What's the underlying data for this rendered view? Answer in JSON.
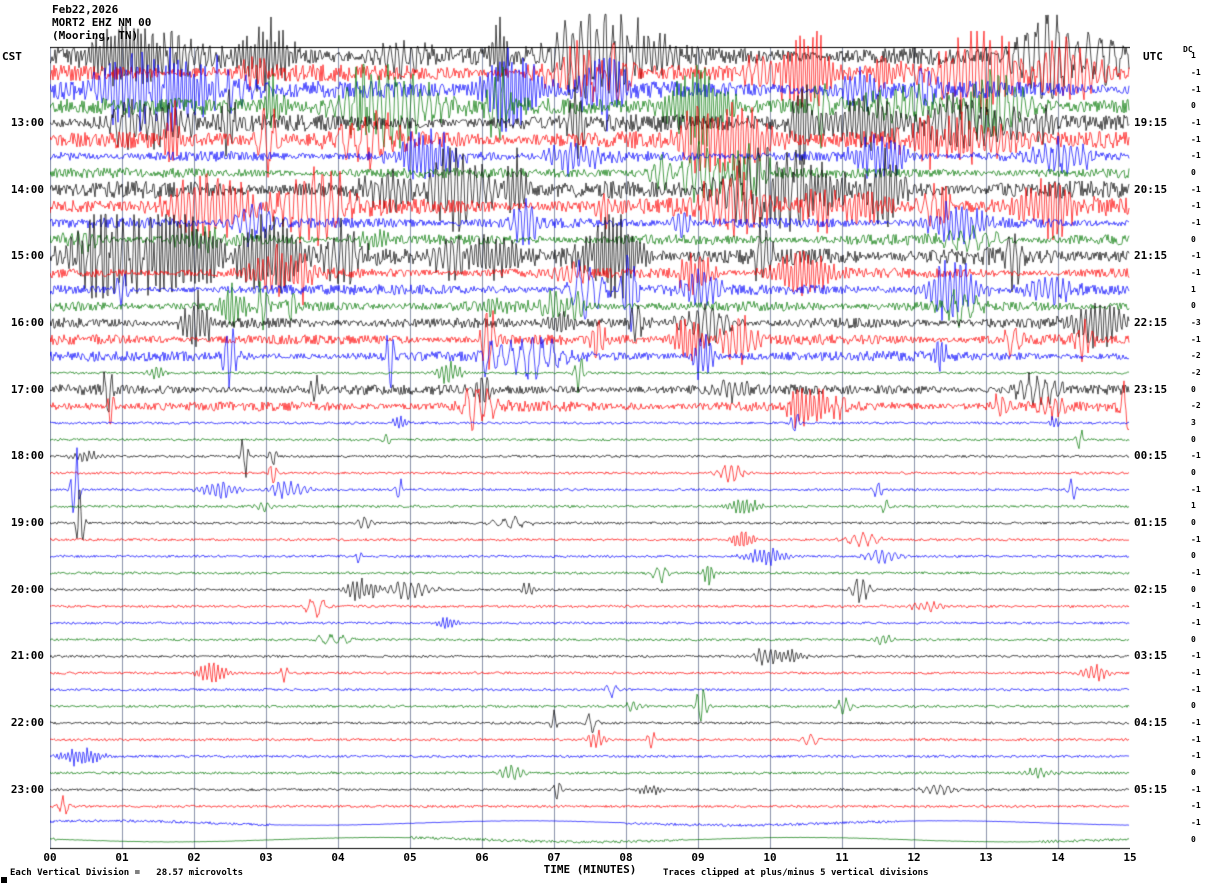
{
  "header": {
    "date": "Feb22,2026",
    "station": "MORT2 EHZ NM 00",
    "location": "(Mooring, TN)"
  },
  "axes": {
    "left_timezone": "CST",
    "right_timezone": "UTC",
    "dc_label": "DC",
    "x_title": "TIME (MINUTES)"
  },
  "footer": {
    "left": "Each Vertical Division =   28.57 microvolts",
    "right": "Traces clipped at plus/minus 5 vertical divisions"
  },
  "chart_data": {
    "type": "line",
    "subtype": "helicorder-seismogram",
    "title": "MORT2 EHZ NM 00 (Mooring, TN) Feb22,2026",
    "xlabel": "TIME (MINUTES)",
    "x_range": [
      0,
      15
    ],
    "x_ticks": [
      "00",
      "01",
      "02",
      "03",
      "04",
      "05",
      "06",
      "07",
      "08",
      "09",
      "10",
      "11",
      "12",
      "13",
      "14",
      "15"
    ],
    "minutes_per_row": 15,
    "vertical_division_microvolts": 28.57,
    "clip_divisions": 5,
    "grid_color": "#8a92aa",
    "trace_colors": [
      "#000000",
      "#ff0000",
      "#0000ff",
      "#007700"
    ],
    "rows": [
      {
        "color": 0,
        "level": "high",
        "dc": 1
      },
      {
        "color": 1,
        "level": "high",
        "dc": -1
      },
      {
        "color": 2,
        "level": "high",
        "dc": -1
      },
      {
        "color": 3,
        "level": "high",
        "dc": 0
      },
      {
        "color": 0,
        "level": "high",
        "dc": -1,
        "cst": "13:00",
        "utc": "19:15"
      },
      {
        "color": 1,
        "level": "high",
        "dc": -1
      },
      {
        "color": 2,
        "level": "med",
        "dc": -1
      },
      {
        "color": 3,
        "level": "med",
        "dc": 0
      },
      {
        "color": 0,
        "level": "high",
        "dc": -1,
        "cst": "14:00",
        "utc": "20:15"
      },
      {
        "color": 1,
        "level": "high",
        "dc": -1
      },
      {
        "color": 2,
        "level": "med",
        "dc": -1
      },
      {
        "color": 3,
        "level": "med",
        "dc": 0
      },
      {
        "color": 0,
        "level": "high",
        "dc": -1,
        "cst": "15:00",
        "utc": "21:15",
        "bursts": [
          [
            9.9,
            30,
            0.15
          ],
          [
            13.4,
            26,
            0.12
          ]
        ]
      },
      {
        "color": 1,
        "level": "med",
        "dc": -1,
        "bursts": [
          [
            3.1,
            26,
            0.08
          ],
          [
            3.5,
            20,
            0.06
          ]
        ]
      },
      {
        "color": 2,
        "level": "med",
        "dc": 1,
        "bursts": [
          [
            8.05,
            36,
            0.12
          ],
          [
            1.0,
            18,
            0.08
          ]
        ]
      },
      {
        "color": 3,
        "level": "med",
        "dc": 0,
        "bursts": [
          [
            2.95,
            22,
            0.08
          ],
          [
            3.35,
            18,
            0.06
          ],
          [
            7.3,
            14,
            0.08
          ]
        ]
      },
      {
        "color": 0,
        "level": "med",
        "dc": -3,
        "cst": "16:00",
        "utc": "22:15",
        "bursts": [
          [
            8.15,
            20,
            0.1
          ]
        ]
      },
      {
        "color": 1,
        "level": "med",
        "dc": -1,
        "bursts": [
          [
            6.1,
            30,
            0.1
          ],
          [
            14.35,
            16,
            0.12
          ]
        ]
      },
      {
        "color": 2,
        "level": "med",
        "dc": -2,
        "bursts": [
          [
            2.5,
            30,
            0.09
          ],
          [
            4.72,
            28,
            0.07
          ]
        ]
      },
      {
        "color": 3,
        "level": "low",
        "dc": -2,
        "bursts": [
          [
            7.35,
            16,
            0.07
          ]
        ]
      },
      {
        "color": 0,
        "level": "med",
        "dc": 0,
        "cst": "17:00",
        "utc": "23:15",
        "bursts": [
          [
            0.8,
            26,
            0.07
          ]
        ]
      },
      {
        "color": 1,
        "level": "med",
        "dc": -2,
        "bursts": [
          [
            0.85,
            16,
            0.06
          ],
          [
            11.0,
            18,
            0.07
          ],
          [
            13.2,
            12,
            0.1
          ],
          [
            13.9,
            10,
            0.2
          ]
        ]
      },
      {
        "color": 2,
        "level": "low",
        "dc": 3,
        "bursts": [
          [
            10.35,
            12,
            0.06
          ]
        ]
      },
      {
        "color": 3,
        "level": "low",
        "dc": 0,
        "bursts": [
          [
            14.3,
            10,
            0.06
          ]
        ]
      },
      {
        "color": 0,
        "level": "low",
        "dc": -1,
        "cst": "18:00",
        "utc": "00:15",
        "bursts": [
          [
            2.7,
            20,
            0.05
          ],
          [
            3.1,
            14,
            0.05
          ]
        ]
      },
      {
        "color": 1,
        "level": "low",
        "dc": 0,
        "bursts": [
          [
            3.1,
            16,
            0.05
          ]
        ]
      },
      {
        "color": 2,
        "level": "low",
        "dc": -1,
        "bursts": [
          [
            0.35,
            38,
            0.06
          ],
          [
            4.85,
            10,
            0.05
          ],
          [
            11.5,
            8,
            0.06
          ],
          [
            14.2,
            10,
            0.06
          ]
        ]
      },
      {
        "color": 3,
        "level": "low",
        "dc": 1,
        "bursts": [
          [
            11.6,
            8,
            0.05
          ]
        ]
      },
      {
        "color": 0,
        "level": "low",
        "dc": 0,
        "cst": "19:00",
        "utc": "01:15",
        "bursts": [
          [
            0.42,
            40,
            0.05
          ]
        ]
      },
      {
        "color": 1,
        "level": "low",
        "dc": -1
      },
      {
        "color": 2,
        "level": "low",
        "dc": 0,
        "bursts": [
          [
            4.3,
            7,
            0.05
          ]
        ]
      },
      {
        "color": 3,
        "level": "low",
        "dc": -1
      },
      {
        "color": 0,
        "level": "low",
        "dc": 0,
        "cst": "20:00",
        "utc": "02:15",
        "bursts": [
          [
            5.0,
            8,
            0.3
          ],
          [
            11.25,
            12,
            0.12
          ]
        ]
      },
      {
        "color": 1,
        "level": "low",
        "dc": -1
      },
      {
        "color": 2,
        "level": "low",
        "dc": -1
      },
      {
        "color": 3,
        "level": "low",
        "dc": 0
      },
      {
        "color": 0,
        "level": "low",
        "dc": -1,
        "cst": "21:00",
        "utc": "03:15"
      },
      {
        "color": 1,
        "level": "low",
        "dc": -1,
        "bursts": [
          [
            3.25,
            8,
            0.05
          ]
        ]
      },
      {
        "color": 2,
        "level": "low",
        "dc": -1
      },
      {
        "color": 3,
        "level": "low",
        "dc": 0,
        "bursts": [
          [
            9.05,
            20,
            0.07
          ]
        ]
      },
      {
        "color": 0,
        "level": "low",
        "dc": -1,
        "cst": "22:00",
        "utc": "04:15",
        "bursts": [
          [
            7.0,
            10,
            0.06
          ]
        ]
      },
      {
        "color": 1,
        "level": "low",
        "dc": -1,
        "bursts": [
          [
            8.35,
            12,
            0.05
          ]
        ]
      },
      {
        "color": 2,
        "level": "low",
        "dc": -1
      },
      {
        "color": 3,
        "level": "low",
        "dc": 0
      },
      {
        "color": 0,
        "level": "low",
        "dc": -1,
        "cst": "23:00",
        "utc": "05:15",
        "bursts": [
          [
            7.05,
            12,
            0.05
          ]
        ]
      },
      {
        "color": 1,
        "level": "low",
        "dc": -1
      },
      {
        "color": 2,
        "level": "flat",
        "dc": -1
      },
      {
        "color": 3,
        "level": "flat",
        "dc": 0
      }
    ]
  }
}
